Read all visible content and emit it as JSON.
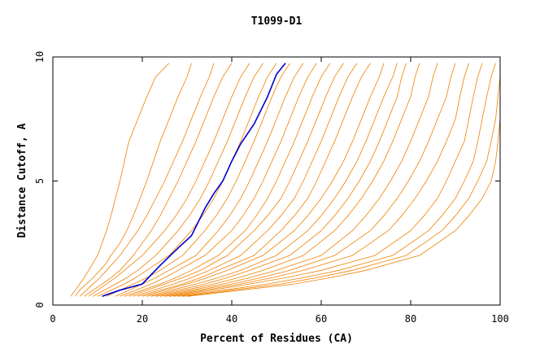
{
  "chart_data": {
    "type": "line",
    "title": "T1099-D1",
    "xlabel": "Percent of Residues (CA)",
    "ylabel": "Distance Cutoff, A",
    "xlim": [
      0,
      100
    ],
    "ylim": [
      0,
      10
    ],
    "x_ticks": [
      0,
      20,
      40,
      60,
      80,
      100
    ],
    "y_ticks": [
      0,
      5,
      10
    ],
    "grid": false,
    "legend": "none",
    "colors": {
      "bundle": "#f08000",
      "highlight": "#0000cc",
      "axes": "#000000"
    },
    "highlight_series": {
      "points": [
        [
          11,
          0.35
        ],
        [
          15,
          0.6
        ],
        [
          20,
          0.85
        ],
        [
          24,
          1.6
        ],
        [
          28,
          2.3
        ],
        [
          31,
          2.8
        ],
        [
          34,
          3.9
        ],
        [
          36,
          4.5
        ],
        [
          38,
          5.0
        ],
        [
          40,
          5.8
        ],
        [
          42,
          6.5
        ],
        [
          45,
          7.3
        ],
        [
          48,
          8.4
        ],
        [
          50,
          9.3
        ],
        [
          52,
          9.75
        ]
      ]
    },
    "bundle": {
      "y_levels": [
        0.35,
        0.6,
        0.85,
        1.1,
        1.4,
        1.7,
        2.0,
        2.5,
        3.0,
        3.6,
        4.3,
        5.0,
        5.8,
        6.6,
        7.5,
        8.4,
        9.2,
        9.75
      ],
      "curves": [
        [
          4,
          5,
          6,
          7,
          8,
          9,
          10,
          11,
          12,
          13,
          14,
          15,
          16,
          17,
          19,
          21,
          23,
          26
        ],
        [
          5,
          6,
          7.5,
          9,
          10.5,
          12,
          13,
          15,
          16.5,
          18,
          19.5,
          21,
          22.5,
          24,
          26,
          28,
          30,
          31
        ],
        [
          6,
          7.5,
          9,
          10.5,
          12,
          13.5,
          15,
          17,
          19,
          21,
          23,
          25,
          27,
          29,
          31,
          33,
          35,
          36
        ],
        [
          7,
          9,
          11,
          13,
          15,
          16.5,
          18,
          20,
          22,
          24,
          26,
          28,
          30,
          32,
          34,
          36,
          38,
          40
        ],
        [
          8,
          10,
          12,
          14,
          16,
          18,
          20,
          22.5,
          25,
          27.5,
          30,
          32,
          34,
          36,
          38,
          40,
          42,
          44
        ],
        [
          9,
          11.5,
          14,
          16.5,
          19,
          21,
          23,
          25.5,
          28,
          30.5,
          33,
          35,
          37,
          39,
          41,
          43,
          45,
          47
        ],
        [
          10,
          13,
          16,
          18.5,
          21,
          23.5,
          26,
          28.5,
          31,
          33.5,
          36,
          38,
          40,
          42,
          44,
          46,
          48,
          50
        ],
        [
          12,
          15,
          18,
          21,
          24,
          26.5,
          29,
          31.5,
          34,
          36.5,
          39,
          41,
          43,
          45,
          47,
          49,
          51,
          53
        ],
        [
          14,
          17,
          20,
          23,
          26,
          29,
          32,
          34.5,
          37,
          39.5,
          42,
          44,
          46,
          48,
          50,
          52,
          54,
          56
        ],
        [
          15,
          18.5,
          22,
          25,
          28,
          31,
          34,
          37,
          40,
          42.5,
          45,
          47,
          49,
          51,
          53,
          55,
          57,
          59
        ],
        [
          16,
          20,
          24,
          27.5,
          31,
          34,
          37,
          40,
          43,
          45.5,
          48,
          50,
          52,
          54,
          56,
          58,
          60,
          62
        ],
        [
          17,
          21,
          25,
          29,
          33,
          36,
          39,
          42,
          45,
          48,
          51,
          53,
          55,
          57,
          59,
          61,
          63,
          65
        ],
        [
          18,
          22.5,
          27,
          31,
          35,
          38.5,
          42,
          45,
          48,
          51,
          54,
          56,
          58,
          60,
          62,
          64,
          66,
          68
        ],
        [
          19,
          24,
          29,
          33,
          37,
          41,
          45,
          48,
          51,
          54,
          57,
          59,
          61,
          63,
          65,
          67,
          69,
          71
        ],
        [
          20,
          25,
          30,
          34.5,
          39,
          43,
          47,
          50.5,
          54,
          57,
          60,
          62.5,
          65,
          67,
          69,
          71,
          73,
          74
        ],
        [
          21,
          26.5,
          32,
          37,
          42,
          46,
          50,
          53.5,
          57,
          60,
          63,
          65.5,
          68,
          70,
          72,
          74,
          76,
          77
        ],
        [
          22,
          28,
          34,
          39,
          44,
          48.5,
          53,
          56.5,
          60,
          63,
          66,
          68.5,
          71,
          73,
          75,
          77,
          78,
          79
        ],
        [
          23,
          29.5,
          36,
          41.5,
          47,
          51.5,
          56,
          59.5,
          63,
          66,
          69,
          71.5,
          74,
          76,
          78,
          80,
          81,
          82
        ],
        [
          24,
          31,
          38,
          44,
          50,
          55,
          60,
          63.5,
          67,
          70,
          73,
          75.5,
          78,
          80,
          82,
          84,
          85,
          86
        ],
        [
          25,
          32.5,
          40,
          46.5,
          53,
          58,
          63,
          67,
          71,
          74,
          77,
          79.5,
          82,
          84,
          86,
          88,
          89,
          90
        ],
        [
          26,
          34,
          42,
          49,
          56,
          61.5,
          67,
          71,
          75,
          78,
          81,
          83.5,
          86,
          88,
          90,
          91,
          92,
          93
        ],
        [
          27,
          35.5,
          44,
          52,
          60,
          66,
          72,
          76,
          80,
          83,
          86,
          88,
          90,
          92,
          93,
          94,
          95,
          96
        ],
        [
          28,
          38,
          48,
          56,
          64,
          70,
          76,
          80,
          84,
          87,
          90,
          92,
          94,
          95,
          96,
          97,
          98,
          99
        ],
        [
          29,
          40,
          51,
          59,
          67,
          73,
          79,
          83,
          87,
          90,
          93,
          95,
          97,
          98,
          99,
          99.5,
          100,
          100
        ],
        [
          30,
          42,
          54,
          62,
          70,
          76,
          82,
          86,
          90,
          93,
          96,
          98,
          99,
          99.5,
          100,
          100,
          100,
          100
        ]
      ]
    }
  }
}
